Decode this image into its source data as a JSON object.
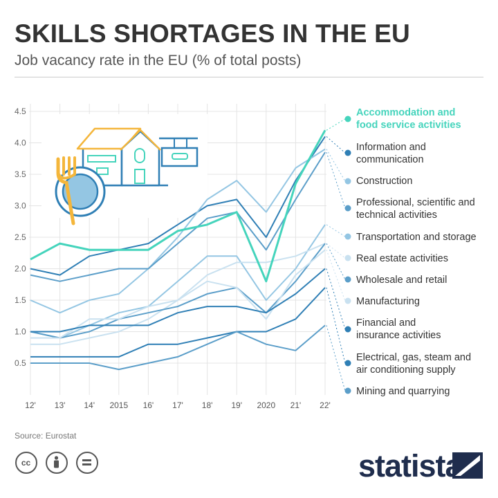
{
  "header": {
    "title": "SKILLS SHORTAGES IN THE EU",
    "subtitle": "Job vacancy rate in the EU (% of total posts)"
  },
  "footer": {
    "source": "Source: Eurostat",
    "brand": "statista"
  },
  "colors": {
    "accent": "#45d4bc",
    "dark_blue": "#2f7fb5",
    "mid_blue": "#5b9ec9",
    "light_blue": "#94c6e3",
    "pale_blue": "#c9e1f0",
    "text": "#333333",
    "brand": "#1f2d4d"
  },
  "icons": [
    "hotel-restaurant-illustration",
    "cc-icon",
    "attribution-icon",
    "no-derivatives-icon",
    "statista-logo"
  ],
  "chart_data": {
    "type": "line",
    "title": "SKILLS SHORTAGES IN THE EU",
    "subtitle": "Job vacancy rate in the EU (% of total posts)",
    "x": [
      "12'",
      "13'",
      "14'",
      "2015",
      "16'",
      "17'",
      "18'",
      "19'",
      "2020",
      "21'",
      "22'"
    ],
    "ylim": [
      0,
      4.5
    ],
    "yticks": [
      "0.5",
      "1.0",
      "1.5",
      "2.0",
      "2.5",
      "3.0",
      "3.5",
      "4.0",
      "4.5"
    ],
    "grid": true,
    "legend_position": "right",
    "series": [
      {
        "name": "Accommodation and food service activities",
        "color": "#45d4bc",
        "values": [
          2.15,
          2.4,
          2.3,
          2.3,
          2.3,
          2.6,
          2.7,
          2.9,
          1.8,
          3.35,
          4.2
        ]
      },
      {
        "name": "Information and communication",
        "color": "#2f7fb5",
        "values": [
          2.0,
          1.9,
          2.2,
          2.3,
          2.4,
          2.7,
          3.0,
          3.1,
          2.5,
          3.4,
          4.1
        ]
      },
      {
        "name": "Construction",
        "color": "#94c6e3",
        "values": [
          1.5,
          1.3,
          1.5,
          1.6,
          2.0,
          2.5,
          3.1,
          3.4,
          2.9,
          3.6,
          3.9
        ]
      },
      {
        "name": "Professional, scientific and technical activities",
        "color": "#5b9ec9",
        "values": [
          1.9,
          1.8,
          1.9,
          2.0,
          2.0,
          2.4,
          2.8,
          2.9,
          2.3,
          3.1,
          3.85
        ]
      },
      {
        "name": "Transportation and storage",
        "color": "#94c6e3",
        "values": [
          1.0,
          0.9,
          1.1,
          1.3,
          1.4,
          1.8,
          2.2,
          2.2,
          1.5,
          2.0,
          2.7
        ]
      },
      {
        "name": "Real estate activities",
        "color": "#c9e1f0",
        "values": [
          0.8,
          0.8,
          0.9,
          1.0,
          1.2,
          1.5,
          1.9,
          2.1,
          2.1,
          2.2,
          2.4
        ]
      },
      {
        "name": "Wholesale and retail",
        "color": "#5b9ec9",
        "values": [
          1.0,
          0.9,
          1.0,
          1.2,
          1.3,
          1.4,
          1.6,
          1.7,
          1.3,
          1.8,
          2.4
        ]
      },
      {
        "name": "Manufacturing",
        "color": "#c9e1f0",
        "values": [
          0.9,
          0.9,
          1.2,
          1.2,
          1.4,
          1.5,
          1.8,
          1.7,
          1.2,
          1.9,
          2.3
        ]
      },
      {
        "name": "Financial and insurance activities",
        "color": "#2f7fb5",
        "values": [
          1.0,
          1.0,
          1.1,
          1.1,
          1.1,
          1.3,
          1.4,
          1.4,
          1.3,
          1.6,
          2.0
        ]
      },
      {
        "name": "Electrical, gas, steam and air conditioning supply",
        "color": "#2f7fb5",
        "values": [
          0.6,
          0.6,
          0.6,
          0.6,
          0.8,
          0.8,
          0.9,
          1.0,
          1.0,
          1.2,
          1.7
        ]
      },
      {
        "name": "Mining and quarrying",
        "color": "#5b9ec9",
        "values": [
          0.5,
          0.5,
          0.5,
          0.4,
          0.5,
          0.6,
          0.8,
          1.0,
          0.8,
          0.7,
          1.1
        ]
      }
    ],
    "legend_lines": [
      [
        "Accommodation and",
        "food service activities"
      ],
      [
        "Information and",
        "communication"
      ],
      [
        "Construction"
      ],
      [
        "Professional, scientific and",
        "technical activities"
      ],
      [
        "Transportation and storage"
      ],
      [
        "Real estate activities"
      ],
      [
        "Wholesale and retail"
      ],
      [
        "Manufacturing"
      ],
      [
        "Financial and",
        "insurance activities"
      ],
      [
        "Electrical, gas, steam and",
        "air conditioning supply"
      ],
      [
        "Mining and quarrying"
      ]
    ]
  }
}
